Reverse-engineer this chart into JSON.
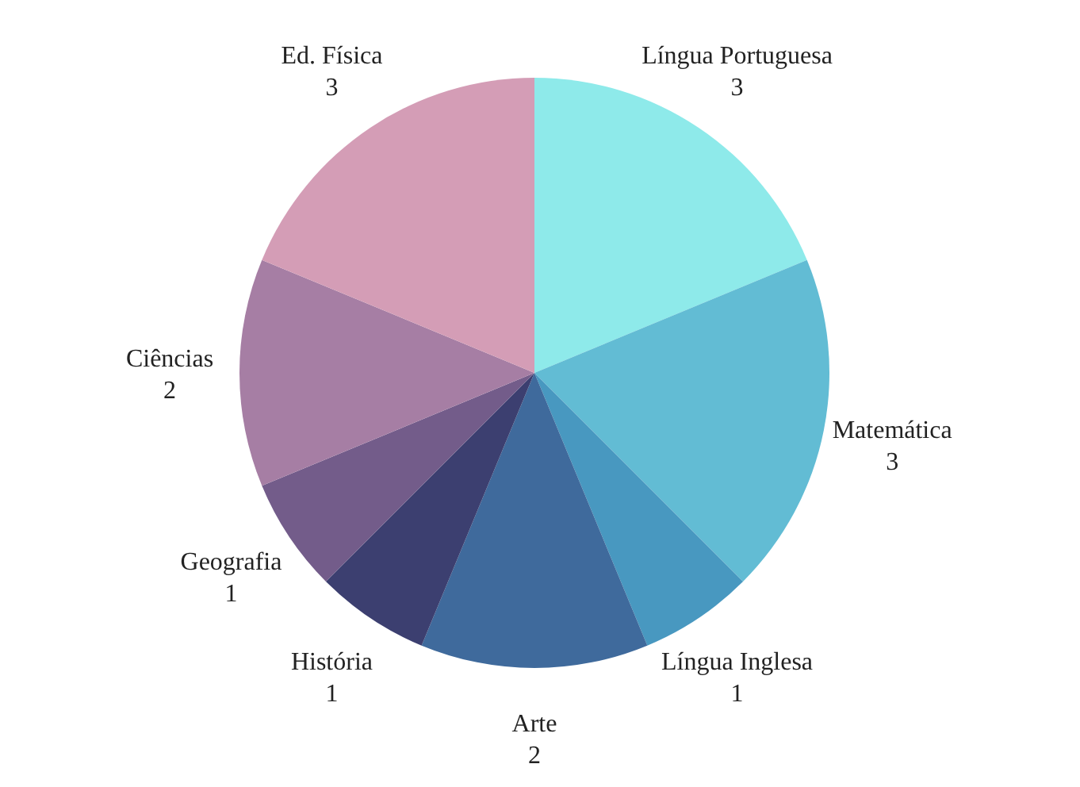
{
  "chart_data": {
    "type": "pie",
    "categories": [
      "Língua Portuguesa",
      "Matemática",
      "Língua Inglesa",
      "Arte",
      "História",
      "Geografia",
      "Ciências",
      "Ed. Física"
    ],
    "values": [
      3,
      3,
      1,
      2,
      1,
      1,
      2,
      3
    ],
    "colors": [
      "#8eeaea",
      "#62bcd4",
      "#4898c0",
      "#3f6a9c",
      "#3c3f70",
      "#735c8a",
      "#a67ea4",
      "#d49db6"
    ],
    "data_labels": true,
    "legend": false
  }
}
